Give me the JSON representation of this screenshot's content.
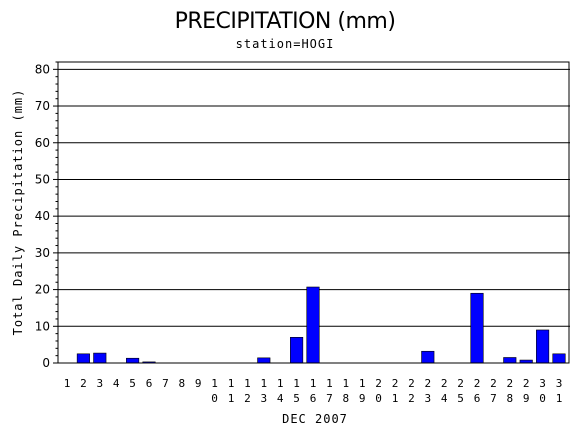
{
  "chart_data": {
    "type": "bar",
    "title": "PRECIPITATION (mm)",
    "subtitle": "station=HOGI",
    "xlabel": "DEC 2007",
    "ylabel": "Total Daily Precipitation (mm)",
    "ylim": [
      0,
      82
    ],
    "yticks": [
      0,
      10,
      20,
      30,
      40,
      50,
      60,
      70,
      80
    ],
    "grid": "horizontal",
    "bar_color": "#0000ff",
    "categories": [
      "1",
      "2",
      "3",
      "4",
      "5",
      "6",
      "7",
      "8",
      "9",
      "10",
      "11",
      "12",
      "13",
      "14",
      "15",
      "16",
      "17",
      "18",
      "19",
      "20",
      "21",
      "22",
      "23",
      "24",
      "25",
      "26",
      "27",
      "28",
      "29",
      "30",
      "31"
    ],
    "values": [
      0,
      2.5,
      2.7,
      0,
      1.3,
      0.3,
      0,
      0,
      0,
      0,
      0,
      0,
      1.4,
      0,
      7.0,
      20.7,
      0,
      0,
      0,
      0,
      0,
      0,
      3.2,
      0,
      0,
      19.0,
      0,
      1.5,
      0.8,
      9.0,
      2.5
    ]
  }
}
